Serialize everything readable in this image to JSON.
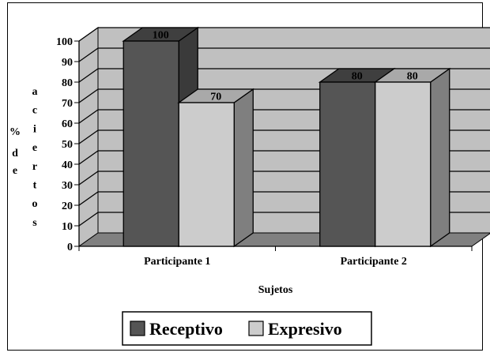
{
  "chart_data": {
    "type": "bar",
    "categories": [
      "Participante 1",
      "Participante 2"
    ],
    "series": [
      {
        "name": "Receptivo",
        "values": [
          100,
          80
        ],
        "color": "#555555",
        "side_color": "#3a3a3a",
        "top_color": "#3f3f3f"
      },
      {
        "name": "Expresivo",
        "values": [
          70,
          80
        ],
        "color": "#cccccc",
        "side_color": "#7f7f7f",
        "top_color": "#a9a9a9"
      }
    ],
    "data_labels": [
      [
        "100",
        "80"
      ],
      [
        "70",
        "80"
      ]
    ],
    "y_ticks": [
      "0",
      "10",
      "20",
      "30",
      "40",
      "50",
      "60",
      "70",
      "80",
      "90",
      "100"
    ],
    "ylim": [
      0,
      100
    ],
    "xlabel": "Sujetos",
    "ylabel_prefix": "%",
    "ylabel_de": [
      "d",
      "e"
    ],
    "ylabel_aciertos": [
      "a",
      "c",
      "i",
      "e",
      "r",
      "t",
      "o",
      "s"
    ],
    "grid": true,
    "legend_position": "bottom-center",
    "wall_color": "#c0c0c0",
    "floor_color": "#808080"
  }
}
